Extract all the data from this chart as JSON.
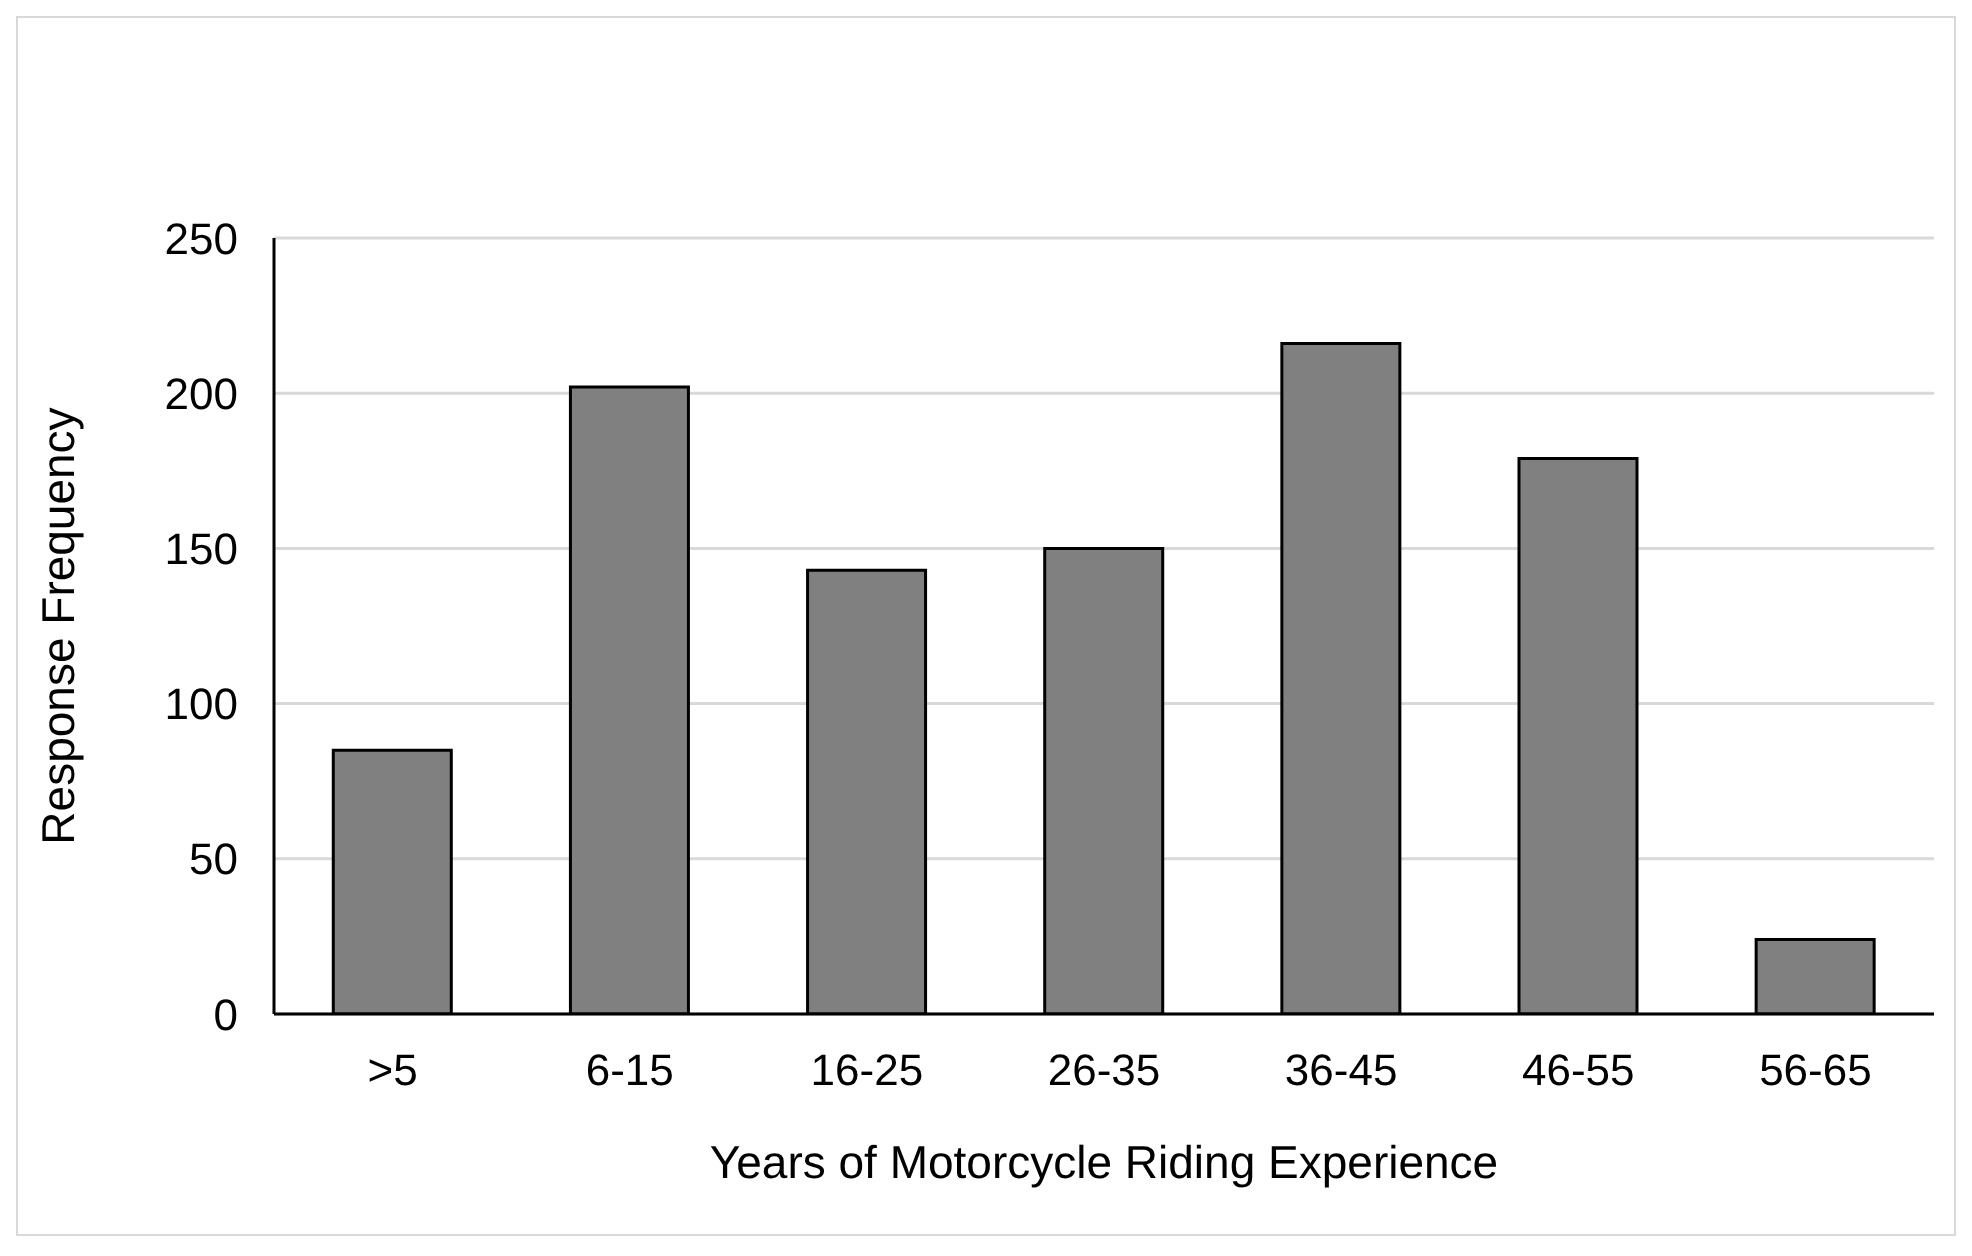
{
  "chart_data": {
    "type": "bar",
    "xlabel": "Years of Motorcycle Riding Experience",
    "ylabel": "Response Frequency",
    "categories": [
      ">5",
      "6-15",
      "16-25",
      "26-35",
      "36-45",
      "46-55",
      "56-65"
    ],
    "values": [
      85,
      202,
      143,
      150,
      216,
      179,
      24
    ],
    "color": "#808080",
    "ylim": [
      0,
      250
    ],
    "yticks": [
      0,
      50,
      100,
      150,
      200,
      250
    ],
    "grid": "y"
  }
}
